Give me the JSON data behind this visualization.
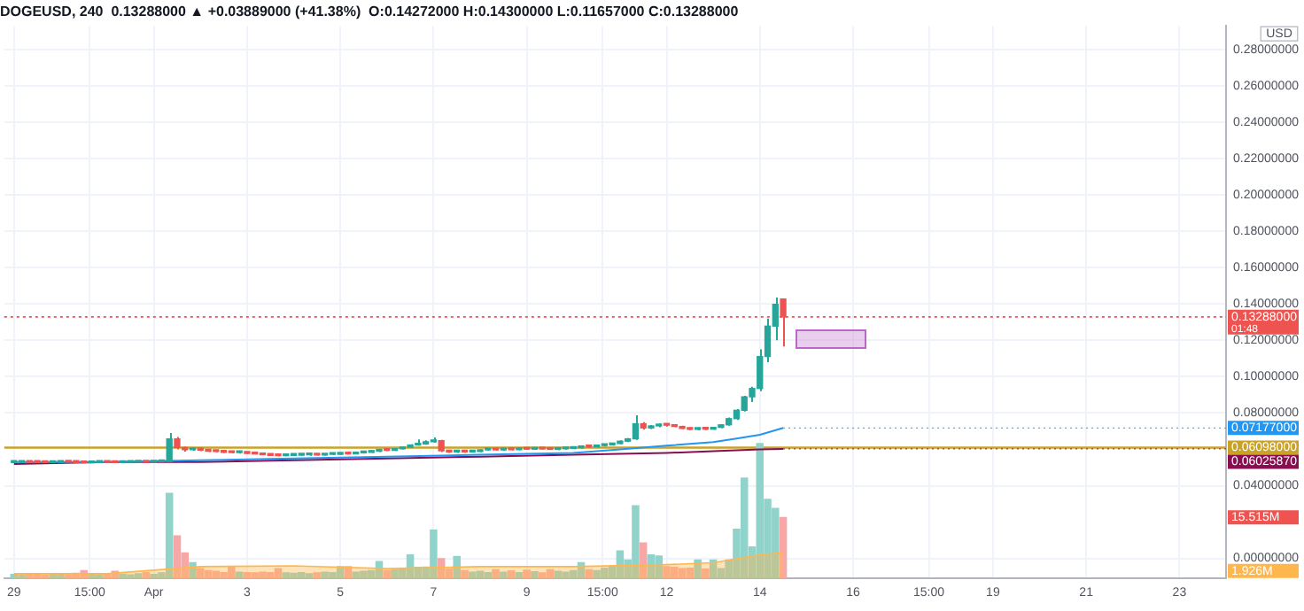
{
  "chart_data": {
    "type": "candlestick",
    "title": "DOGEUSD, 240  0.13288000 ▲ +0.03889000 (+41.38%)  O:0.14272000 H:0.14300000 L:0.11657000 C:0.13288000",
    "ylabel": "USD",
    "x": [
      "--03-29T00:00",
      "--03-29T04:00",
      "--03-29T08:00",
      "--03-29T12:00",
      "--03-29T16:00",
      "--03-29T20:00",
      "--03-30T00:00",
      "--03-30T04:00",
      "--03-30T08:00",
      "--03-30T12:00",
      "--03-30T16:00",
      "--03-30T20:00",
      "--03-31T00:00",
      "--03-31T04:00",
      "--03-31T08:00",
      "--03-31T12:00",
      "--03-31T16:00",
      "--03-31T20:00",
      "--04-01T00:00",
      "--04-01T04:00",
      "--04-01T08:00",
      "--04-01T12:00",
      "--04-01T16:00",
      "--04-01T20:00",
      "--04-02T00:00",
      "--04-02T04:00",
      "--04-02T08:00",
      "--04-02T12:00",
      "--04-02T16:00",
      "--04-02T20:00",
      "--04-03T00:00",
      "--04-03T04:00",
      "--04-03T08:00",
      "--04-03T12:00",
      "--04-03T16:00",
      "--04-03T20:00",
      "--04-04T00:00",
      "--04-04T04:00",
      "--04-04T08:00",
      "--04-04T12:00",
      "--04-04T16:00",
      "--04-04T20:00",
      "--04-05T00:00",
      "--04-05T04:00",
      "--04-05T08:00",
      "--04-05T12:00",
      "--04-05T16:00",
      "--04-05T20:00",
      "--04-06T00:00",
      "--04-06T04:00",
      "--04-06T08:00",
      "--04-06T12:00",
      "--04-06T16:00",
      "--04-06T20:00",
      "--04-07T00:00",
      "--04-07T04:00",
      "--04-07T08:00",
      "--04-07T12:00",
      "--04-07T16:00",
      "--04-07T20:00",
      "--04-08T00:00",
      "--04-08T04:00",
      "--04-08T08:00",
      "--04-08T12:00",
      "--04-08T16:00",
      "--04-08T20:00",
      "--04-09T00:00",
      "--04-09T04:00",
      "--04-09T08:00",
      "--04-09T12:00",
      "--04-09T16:00",
      "--04-09T20:00",
      "--04-10T00:00",
      "--04-10T04:00",
      "--04-10T08:00",
      "--04-10T12:00",
      "--04-10T16:00",
      "--04-10T20:00",
      "--04-11T00:00",
      "--04-11T04:00",
      "--04-11T08:00",
      "--04-11T12:00",
      "--04-11T16:00",
      "--04-11T20:00",
      "--04-12T00:00",
      "--04-12T04:00",
      "--04-12T08:00",
      "--04-12T12:00",
      "--04-12T16:00",
      "--04-12T20:00",
      "--04-13T00:00",
      "--04-13T04:00",
      "--04-13T08:00",
      "--04-13T12:00",
      "--04-13T16:00",
      "--04-13T20:00",
      "--04-14T00:00",
      "--04-14T04:00",
      "--04-14T08:00",
      "--04-14T12:00"
    ],
    "series": [
      {
        "colors": [
          "#26a69a",
          "#26a69a",
          "#ef5350",
          "#ef5350",
          "#ef5350",
          "#26a69a",
          "#26a69a",
          "#ef5350",
          "#ef5350",
          "#ef5350",
          "#26a69a",
          "#26a69a",
          "#ef5350",
          "#ef5350",
          "#26a69a",
          "#26a69a",
          "#26a69a",
          "#ef5350",
          "#26a69a",
          "#26a69a",
          "#26a69a",
          "#ef5350",
          "#ef5350",
          "#26a69a",
          "#ef5350",
          "#ef5350",
          "#ef5350",
          "#ef5350",
          "#ef5350",
          "#26a69a",
          "#ef5350",
          "#ef5350",
          "#ef5350",
          "#ef5350",
          "#ef5350",
          "#26a69a",
          "#26a69a",
          "#26a69a",
          "#26a69a",
          "#ef5350",
          "#26a69a",
          "#26a69a",
          "#26a69a",
          "#ef5350",
          "#26a69a",
          "#26a69a",
          "#26a69a",
          "#26a69a",
          "#ef5350",
          "#26a69a",
          "#26a69a",
          "#26a69a",
          "#26a69a",
          "#26a69a",
          "#26a69a",
          "#ef5350",
          "#ef5350",
          "#26a69a",
          "#ef5350",
          "#26a69a",
          "#26a69a",
          "#26a69a",
          "#ef5350",
          "#26a69a",
          "#ef5350",
          "#26a69a",
          "#ef5350",
          "#26a69a",
          "#ef5350",
          "#ef5350",
          "#26a69a",
          "#26a69a",
          "#26a69a",
          "#26a69a",
          "#ef5350",
          "#26a69a",
          "#26a69a",
          "#26a69a",
          "#26a69a",
          "#26a69a",
          "#26a69a",
          "#ef5350",
          "#26a69a",
          "#26a69a",
          "#ef5350",
          "#ef5350",
          "#ef5350",
          "#ef5350",
          "#26a69a",
          "#ef5350",
          "#26a69a",
          "#26a69a",
          "#26a69a",
          "#26a69a",
          "#26a69a",
          "#26a69a",
          "#26a69a",
          "#26a69a",
          "#26a69a",
          "#ef5350"
        ],
        "ohlc": [
          [
            0.0528,
            0.0531,
            0.0526,
            0.0529
          ],
          [
            0.0529,
            0.0532,
            0.0527,
            0.053
          ],
          [
            0.053,
            0.0533,
            0.0528,
            0.0529
          ],
          [
            0.0529,
            0.0531,
            0.0526,
            0.0528
          ],
          [
            0.0528,
            0.053,
            0.0525,
            0.0527
          ],
          [
            0.0527,
            0.053,
            0.0525,
            0.0529
          ],
          [
            0.0529,
            0.0532,
            0.0527,
            0.0531
          ],
          [
            0.0531,
            0.0534,
            0.0529,
            0.053
          ],
          [
            0.053,
            0.0532,
            0.0527,
            0.0528
          ],
          [
            0.0528,
            0.0531,
            0.0524,
            0.0526
          ],
          [
            0.0526,
            0.0529,
            0.0524,
            0.0528
          ],
          [
            0.0528,
            0.0531,
            0.0526,
            0.053
          ],
          [
            0.053,
            0.0533,
            0.0528,
            0.0529
          ],
          [
            0.0529,
            0.0531,
            0.0525,
            0.0527
          ],
          [
            0.0527,
            0.053,
            0.0525,
            0.0529
          ],
          [
            0.0529,
            0.0532,
            0.0527,
            0.053
          ],
          [
            0.053,
            0.0533,
            0.0528,
            0.0531
          ],
          [
            0.0531,
            0.0534,
            0.0529,
            0.053
          ],
          [
            0.053,
            0.0533,
            0.0528,
            0.0532
          ],
          [
            0.0532,
            0.0536,
            0.053,
            0.0534
          ],
          [
            0.0534,
            0.069,
            0.053,
            0.0657
          ],
          [
            0.0657,
            0.0668,
            0.06,
            0.061
          ],
          [
            0.061,
            0.0615,
            0.0588,
            0.0598
          ],
          [
            0.0598,
            0.0612,
            0.0592,
            0.0606
          ],
          [
            0.0606,
            0.061,
            0.059,
            0.0596
          ],
          [
            0.0596,
            0.06,
            0.0585,
            0.059
          ],
          [
            0.059,
            0.0594,
            0.0584,
            0.0588
          ],
          [
            0.0588,
            0.0592,
            0.058,
            0.0584
          ],
          [
            0.0584,
            0.0588,
            0.0578,
            0.0582
          ],
          [
            0.0582,
            0.0586,
            0.0577,
            0.0583
          ],
          [
            0.0583,
            0.0586,
            0.0575,
            0.0578
          ],
          [
            0.0578,
            0.0582,
            0.0572,
            0.0575
          ],
          [
            0.0575,
            0.0579,
            0.0568,
            0.057
          ],
          [
            0.057,
            0.0574,
            0.0564,
            0.0567
          ],
          [
            0.0567,
            0.0571,
            0.0562,
            0.0565
          ],
          [
            0.0565,
            0.057,
            0.0562,
            0.0567
          ],
          [
            0.0567,
            0.0571,
            0.0563,
            0.0568
          ],
          [
            0.0568,
            0.0573,
            0.0564,
            0.057
          ],
          [
            0.057,
            0.0574,
            0.0565,
            0.0571
          ],
          [
            0.0571,
            0.0575,
            0.0566,
            0.0569
          ],
          [
            0.0569,
            0.0574,
            0.0566,
            0.0572
          ],
          [
            0.0572,
            0.0576,
            0.0568,
            0.0573
          ],
          [
            0.0573,
            0.058,
            0.057,
            0.0578
          ],
          [
            0.0578,
            0.0582,
            0.0572,
            0.0575
          ],
          [
            0.0575,
            0.0583,
            0.0573,
            0.0581
          ],
          [
            0.0581,
            0.0586,
            0.0577,
            0.0584
          ],
          [
            0.0584,
            0.0592,
            0.058,
            0.059
          ],
          [
            0.059,
            0.06,
            0.0585,
            0.0598
          ],
          [
            0.0598,
            0.0602,
            0.059,
            0.0594
          ],
          [
            0.0594,
            0.0605,
            0.0591,
            0.0603
          ],
          [
            0.0603,
            0.0615,
            0.06,
            0.0612
          ],
          [
            0.0612,
            0.0628,
            0.0608,
            0.0624
          ],
          [
            0.0624,
            0.0655,
            0.062,
            0.063
          ],
          [
            0.063,
            0.065,
            0.0625,
            0.0642
          ],
          [
            0.0642,
            0.0665,
            0.0636,
            0.0648
          ],
          [
            0.0648,
            0.0652,
            0.0585,
            0.0592
          ],
          [
            0.0592,
            0.0596,
            0.058,
            0.0586
          ],
          [
            0.0586,
            0.0592,
            0.058,
            0.0589
          ],
          [
            0.0589,
            0.0593,
            0.0582,
            0.0586
          ],
          [
            0.0586,
            0.0591,
            0.0581,
            0.0588
          ],
          [
            0.0588,
            0.06,
            0.0585,
            0.0597
          ],
          [
            0.0597,
            0.0603,
            0.0593,
            0.0599
          ],
          [
            0.0599,
            0.0603,
            0.0594,
            0.0597
          ],
          [
            0.0597,
            0.0602,
            0.0593,
            0.06
          ],
          [
            0.06,
            0.0604,
            0.0595,
            0.0598
          ],
          [
            0.0598,
            0.0605,
            0.0596,
            0.0603
          ],
          [
            0.0603,
            0.061,
            0.0599,
            0.0601
          ],
          [
            0.0601,
            0.0606,
            0.0597,
            0.0604
          ],
          [
            0.0604,
            0.0609,
            0.06,
            0.0602
          ],
          [
            0.0602,
            0.0607,
            0.0598,
            0.06
          ],
          [
            0.06,
            0.0605,
            0.0596,
            0.0603
          ],
          [
            0.0603,
            0.0608,
            0.0599,
            0.0605
          ],
          [
            0.0605,
            0.0612,
            0.0601,
            0.0609
          ],
          [
            0.0609,
            0.062,
            0.0605,
            0.0616
          ],
          [
            0.0616,
            0.0622,
            0.061,
            0.0614
          ],
          [
            0.0614,
            0.0624,
            0.0611,
            0.0621
          ],
          [
            0.0621,
            0.0628,
            0.0616,
            0.0625
          ],
          [
            0.0625,
            0.0636,
            0.062,
            0.0632
          ],
          [
            0.0632,
            0.065,
            0.0628,
            0.0645
          ],
          [
            0.0645,
            0.0662,
            0.064,
            0.0658
          ],
          [
            0.0658,
            0.0787,
            0.0652,
            0.0741
          ],
          [
            0.0741,
            0.075,
            0.071,
            0.0718
          ],
          [
            0.0718,
            0.0734,
            0.0712,
            0.0729
          ],
          [
            0.0729,
            0.0742,
            0.0722,
            0.0736
          ],
          [
            0.0736,
            0.074,
            0.0725,
            0.0733
          ],
          [
            0.0733,
            0.0737,
            0.0722,
            0.0726
          ],
          [
            0.0726,
            0.073,
            0.0712,
            0.0715
          ],
          [
            0.0715,
            0.072,
            0.0706,
            0.071
          ],
          [
            0.071,
            0.0718,
            0.0705,
            0.0715
          ],
          [
            0.0715,
            0.0719,
            0.0706,
            0.0711
          ],
          [
            0.0711,
            0.0724,
            0.0708,
            0.0721
          ],
          [
            0.0721,
            0.0738,
            0.0717,
            0.0735
          ],
          [
            0.0735,
            0.0775,
            0.073,
            0.0769
          ],
          [
            0.0769,
            0.0822,
            0.0762,
            0.0815
          ],
          [
            0.0815,
            0.0895,
            0.0808,
            0.0889
          ],
          [
            0.0889,
            0.0945,
            0.086,
            0.0935
          ],
          [
            0.0935,
            0.115,
            0.092,
            0.1111
          ],
          [
            0.1111,
            0.132,
            0.108,
            0.1278
          ],
          [
            0.1278,
            0.1435,
            0.12,
            0.1398
          ],
          [
            0.14272,
            0.143,
            0.11657,
            0.13288
          ]
        ]
      },
      {
        "type": "line",
        "color": "#2196f3",
        "x": [
          "--03-29",
          "--03-31",
          "--04-02",
          "--04-04",
          "--04-06",
          "--04-08",
          "--04-10",
          "--04-11",
          "--04-12",
          "--04-13",
          "--04-13T12:00",
          "--04-14",
          "--04-14T12:00"
        ],
        "values": [
          0.053,
          0.053,
          0.054,
          0.055,
          0.056,
          0.057,
          0.058,
          0.06,
          0.062,
          0.064,
          0.066,
          0.068,
          0.07177
        ]
      },
      {
        "type": "line",
        "color": "#880e4f",
        "x": [
          "--03-29",
          "--03-31",
          "--04-02",
          "--04-04",
          "--04-06",
          "--04-08",
          "--04-10",
          "--04-12",
          "--04-13",
          "--04-14",
          "--04-14T12:00"
        ],
        "values": [
          0.052,
          0.053,
          0.053,
          0.054,
          0.055,
          0.056,
          0.057,
          0.058,
          0.059,
          0.06,
          0.0602587
        ]
      },
      {
        "type": "area",
        "axis": "y2",
        "color": "#ffb74d",
        "x": [
          "--03-29",
          "--03-31",
          "--04-02",
          "--04-04",
          "--04-06",
          "--04-08",
          "--04-10",
          "--04-12",
          "--04-13",
          "--04-14",
          "--04-14T12:00"
        ],
        "values": [
          1.2,
          1.2,
          3.0,
          3.2,
          2.5,
          3.0,
          3.0,
          3.5,
          4.0,
          6.0,
          6.5
        ]
      },
      {
        "type": "bar",
        "axis": "y2",
        "colors": [
          "#8fd3cb",
          "#8fd3cb",
          "#f7a8a6",
          "#f7a8a6",
          "#f7a8a6",
          "#8fd3cb",
          "#8fd3cb",
          "#f7a8a6",
          "#f7a8a6",
          "#f7a8a6",
          "#8fd3cb",
          "#8fd3cb",
          "#f7a8a6",
          "#f7a8a6",
          "#8fd3cb",
          "#8fd3cb",
          "#8fd3cb",
          "#f7a8a6",
          "#8fd3cb",
          "#8fd3cb",
          "#8fd3cb",
          "#f7a8a6",
          "#f7a8a6",
          "#8fd3cb",
          "#f7a8a6",
          "#f7a8a6",
          "#f7a8a6",
          "#f7a8a6",
          "#f7a8a6",
          "#8fd3cb",
          "#f7a8a6",
          "#f7a8a6",
          "#f7a8a6",
          "#f7a8a6",
          "#f7a8a6",
          "#8fd3cb",
          "#8fd3cb",
          "#8fd3cb",
          "#8fd3cb",
          "#f7a8a6",
          "#8fd3cb",
          "#8fd3cb",
          "#8fd3cb",
          "#f7a8a6",
          "#8fd3cb",
          "#8fd3cb",
          "#8fd3cb",
          "#8fd3cb",
          "#f7a8a6",
          "#8fd3cb",
          "#8fd3cb",
          "#8fd3cb",
          "#8fd3cb",
          "#8fd3cb",
          "#8fd3cb",
          "#f7a8a6",
          "#f7a8a6",
          "#8fd3cb",
          "#f7a8a6",
          "#8fd3cb",
          "#8fd3cb",
          "#8fd3cb",
          "#f7a8a6",
          "#8fd3cb",
          "#f7a8a6",
          "#8fd3cb",
          "#f7a8a6",
          "#8fd3cb",
          "#f7a8a6",
          "#f7a8a6",
          "#8fd3cb",
          "#8fd3cb",
          "#8fd3cb",
          "#8fd3cb",
          "#f7a8a6",
          "#8fd3cb",
          "#8fd3cb",
          "#8fd3cb",
          "#8fd3cb",
          "#8fd3cb",
          "#8fd3cb",
          "#f7a8a6",
          "#8fd3cb",
          "#8fd3cb",
          "#f7a8a6",
          "#f7a8a6",
          "#f7a8a6",
          "#f7a8a6",
          "#8fd3cb",
          "#f7a8a6",
          "#8fd3cb",
          "#8fd3cb",
          "#8fd3cb",
          "#8fd3cb",
          "#8fd3cb",
          "#8fd3cb",
          "#8fd3cb",
          "#8fd3cb",
          "#8fd3cb",
          "#f7a8a6"
        ],
        "values": [
          1.0,
          0.9,
          1.1,
          1.2,
          0.8,
          1.0,
          1.1,
          0.9,
          1.3,
          2.0,
          1.2,
          0.9,
          1.0,
          1.8,
          1.1,
          0.9,
          1.2,
          1.5,
          1.0,
          1.4,
          21.6,
          10.8,
          6.5,
          4.0,
          2.5,
          2.0,
          1.8,
          1.5,
          2.8,
          1.6,
          1.5,
          1.4,
          1.6,
          1.5,
          2.5,
          1.4,
          1.3,
          1.5,
          1.2,
          1.4,
          1.6,
          1.5,
          3.0,
          3.0,
          1.6,
          1.8,
          2.0,
          4.3,
          2.0,
          2.2,
          2.6,
          6.0,
          2.8,
          2.9,
          12.3,
          5.0,
          2.4,
          5.6,
          2.0,
          1.6,
          1.8,
          1.5,
          2.2,
          1.6,
          1.9,
          1.5,
          2.1,
          1.7,
          1.4,
          2.2,
          1.8,
          1.6,
          2.0,
          4.0,
          2.2,
          2.0,
          2.6,
          3.0,
          7.0,
          4.7,
          18.5,
          9.0,
          6.0,
          5.7,
          3.0,
          2.8,
          2.5,
          2.6,
          4.7,
          2.4,
          4.7,
          2.5,
          4.7,
          12.5,
          25.5,
          8.0,
          34.3,
          20.1,
          17.8,
          15.515
        ]
      }
    ],
    "xlim": [
      "--03-28T19:00",
      "--04-24"
    ],
    "xticks": [
      {
        "value": "--03-29",
        "label": "29"
      },
      {
        "value": "--03-30T15:00",
        "label": "15:00"
      },
      {
        "value": "--04-01",
        "label": "Apr"
      },
      {
        "value": "--04-03",
        "label": "3"
      },
      {
        "value": "--04-05",
        "label": "5"
      },
      {
        "value": "--04-07",
        "label": "7"
      },
      {
        "value": "--04-09",
        "label": "9"
      },
      {
        "value": "--04-10T15:00",
        "label": "15:00"
      },
      {
        "value": "--04-12",
        "label": "12"
      },
      {
        "value": "--04-14",
        "label": "14"
      },
      {
        "value": "--04-16",
        "label": "16"
      },
      {
        "value": "--04-17T15:00",
        "label": "15:00"
      },
      {
        "value": "--04-19",
        "label": "19"
      },
      {
        "value": "--04-21",
        "label": "21"
      },
      {
        "value": "--04-23",
        "label": "23"
      }
    ],
    "ylim": [
      -0.011,
      0.293
    ],
    "yticks": [
      {
        "value": 0,
        "label": "0.00000000"
      },
      {
        "value": 0.04,
        "label": "0.04000000"
      },
      {
        "value": 0.08,
        "label": "0.08000000"
      },
      {
        "value": 0.1,
        "label": "0.10000000"
      },
      {
        "value": 0.12,
        "label": "0.12000000"
      },
      {
        "value": 0.14,
        "label": "0.14000000"
      },
      {
        "value": 0.16,
        "label": "0.16000000"
      },
      {
        "value": 0.18,
        "label": "0.18000000"
      },
      {
        "value": 0.2,
        "label": "0.20000000"
      },
      {
        "value": 0.22,
        "label": "0.22000000"
      },
      {
        "value": 0.24,
        "label": "0.24000000"
      },
      {
        "value": 0.26,
        "label": "0.26000000"
      },
      {
        "value": 0.28,
        "label": "0.28000000"
      }
    ],
    "y2lim": [
      0,
      140.5
    ],
    "y2ticks": [
      {
        "value": 1.926,
        "label": "1.926M"
      },
      {
        "value": 15.515,
        "label": "15.515M"
      }
    ],
    "ref_lines": [
      {
        "axis": "y",
        "value": 0.06098,
        "label": "0.06098000",
        "color": "#c9a227"
      },
      {
        "axis": "y",
        "value": 0.13288,
        "label": "0.13288000",
        "color": "#ef5350",
        "line_style": "dotted"
      }
    ],
    "annotations": [
      {
        "text": "0.07177000",
        "x": "--04-14T12:00",
        "y": 0.07177
      },
      {
        "text": "0.06025870",
        "x": "--04-14T12:00",
        "y": 0.0602587
      },
      "01:48"
    ],
    "grid": true,
    "legend": false
  }
}
